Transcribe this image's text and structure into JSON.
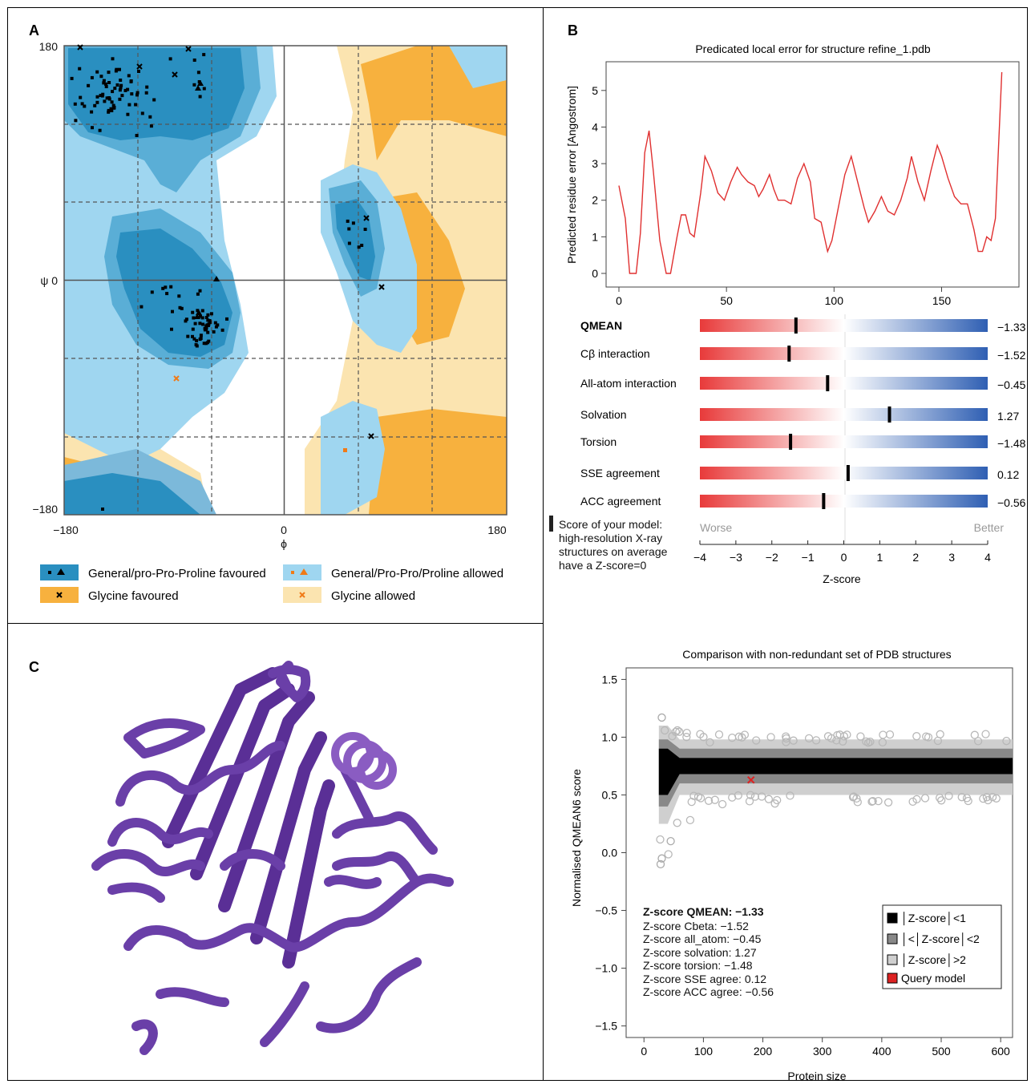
{
  "panels": {
    "A": {
      "label": "A",
      "y_top": "180",
      "y_mid": "ψ 0",
      "y_bottom": "−180",
      "x_left": "−180",
      "x_mid": "0",
      "x_right": "180",
      "x_axis_label": "ϕ",
      "legend": [
        {
          "text": "General/pro-Pro-Proline favoured",
          "color": "#2a8fc0",
          "markers": [
            "square",
            "triangle"
          ],
          "marker_color": "#000000"
        },
        {
          "text": "General/Pro-Pro/Proline allowed",
          "color": "#9fd6f0",
          "markers": [
            "square",
            "triangle"
          ],
          "marker_color": "#f07a17"
        },
        {
          "text": "Glycine favoured",
          "color": "#f7b13e",
          "markers": [
            "x"
          ],
          "marker_color": "#000000"
        },
        {
          "text": "Glycine allowed",
          "color": "#fbe4b0",
          "markers": [
            "x"
          ],
          "marker_color": "#f07a17"
        }
      ]
    },
    "B": {
      "label": "B"
    },
    "C": {
      "label": "C"
    }
  },
  "colors": {
    "ramachandran_favoured": "#2a8fc0",
    "ramachandran_allowed": "#9fd6f0",
    "glycine_favoured": "#f7b13e",
    "glycine_allowed": "#fbe4b0",
    "line_red": "#e03030",
    "protein_purple": "#6a3fa8"
  },
  "qmean": {
    "rows": [
      {
        "label": "QMEAN",
        "value": -1.33,
        "value_text": "−1.33",
        "bold": true
      },
      {
        "label": "Cβ interaction",
        "value": -1.52,
        "value_text": "−1.52"
      },
      {
        "label": "All-atom interaction",
        "value": -0.45,
        "value_text": "−0.45"
      },
      {
        "label": "Solvation",
        "value": 1.27,
        "value_text": "1.27"
      },
      {
        "label": "Torsion",
        "value": -1.48,
        "value_text": "−1.48"
      },
      {
        "label": "SSE agreement",
        "value": 0.12,
        "value_text": "0.12"
      },
      {
        "label": "ACC agreement",
        "value": -0.56,
        "value_text": "−0.56"
      }
    ],
    "note": [
      "Score of your model:",
      "high-resolution X-ray",
      "structures on average",
      "have a Z-score=0"
    ],
    "worse": "Worse",
    "better": "Better",
    "ticks": [
      "−4",
      "−3",
      "−2",
      "−1",
      "0",
      "1",
      "2",
      "3",
      "4"
    ],
    "xlabel": "Z-score"
  },
  "chart_data": [
    {
      "type": "line",
      "title": "Predicated local error for structure refine_1.pdb",
      "xlabel": "",
      "ylabel": "Predicted residue error [Angostrom]",
      "xlim": [
        0,
        180
      ],
      "ylim": [
        0,
        5.5
      ],
      "xticks": [
        "0",
        "50",
        "100",
        "150"
      ],
      "yticks": [
        "0",
        "1",
        "2",
        "3",
        "4",
        "5"
      ],
      "x": [
        0,
        3,
        5,
        8,
        10,
        12,
        14,
        16,
        19,
        22,
        24,
        27,
        29,
        31,
        33,
        35,
        38,
        40,
        43,
        46,
        49,
        52,
        55,
        57,
        60,
        63,
        65,
        67,
        70,
        72,
        74,
        77,
        80,
        83,
        86,
        89,
        91,
        94,
        97,
        99,
        102,
        105,
        108,
        111,
        114,
        116,
        119,
        122,
        125,
        128,
        131,
        134,
        136,
        139,
        142,
        145,
        148,
        150,
        153,
        156,
        159,
        162,
        165,
        167,
        169,
        171,
        173,
        175,
        178
      ],
      "values": [
        2.4,
        1.5,
        0.0,
        0.0,
        1.1,
        3.3,
        3.9,
        2.8,
        0.9,
        0.0,
        0.0,
        1.0,
        1.6,
        1.6,
        1.1,
        1.0,
        2.2,
        3.2,
        2.8,
        2.2,
        2.0,
        2.5,
        2.9,
        2.7,
        2.5,
        2.4,
        2.1,
        2.3,
        2.7,
        2.3,
        2.0,
        2.0,
        1.9,
        2.6,
        3.0,
        2.5,
        1.5,
        1.4,
        0.6,
        0.9,
        1.8,
        2.7,
        3.2,
        2.5,
        1.8,
        1.4,
        1.7,
        2.1,
        1.7,
        1.6,
        2.0,
        2.6,
        3.2,
        2.5,
        2.0,
        2.8,
        3.5,
        3.2,
        2.6,
        2.1,
        1.9,
        1.9,
        1.2,
        0.6,
        0.6,
        1.0,
        0.9,
        1.5,
        5.5
      ],
      "line_color": "#e03030"
    },
    {
      "type": "scatter",
      "title": "Comparison with non-redundant set of PDB structures",
      "xlabel": "Protein size",
      "ylabel": "Normalised QMEAN6 score",
      "xlim": [
        -30,
        620
      ],
      "ylim": [
        -1.6,
        1.6
      ],
      "xticks": [
        "0",
        "100",
        "200",
        "300",
        "400",
        "500",
        "600"
      ],
      "yticks": [
        "1.5",
        "1.0",
        "0.5",
        "0.0",
        "−0.5",
        "−1.0",
        "−1.5"
      ],
      "series": [
        {
          "name": "│Z-score│<1",
          "color": "#000000"
        },
        {
          "name": "│<│Z-score│<2",
          "color": "#888888"
        },
        {
          "name": "│Z-score│>2",
          "color": "#cfcfcf"
        },
        {
          "name": "Query model",
          "color": "#dd2222",
          "x": [
            180
          ],
          "y": [
            0.63
          ]
        }
      ],
      "annotations": [
        "Z-score QMEAN: −1.33",
        "Z-score Cbeta: −1.52",
        "Z-score all_atom: −0.45",
        "Z-score solvation: 1.27",
        "Z-score torsion: −1.48",
        "Z-score SSE agree: 0.12",
        "Z-score ACC agree: −0.56"
      ]
    }
  ]
}
